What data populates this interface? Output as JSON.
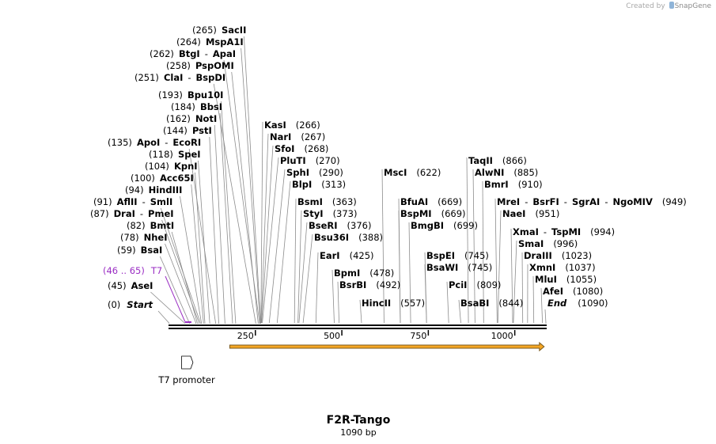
{
  "credit": {
    "prefix": "Created by",
    "brand": "SnapGene"
  },
  "sequence": {
    "name": "F2R-Tango",
    "length_label": "1090 bp",
    "length": 1090,
    "start_label": "Start",
    "start_pos": "(0)",
    "end_label": "End",
    "end_pos": "(1090)"
  },
  "colors": {
    "primer": "#9b2fc4",
    "orf_fill": "#f5a623",
    "orf_outline": "#7a5a1e",
    "backbone": "#000000"
  },
  "ruler": {
    "ticks": [
      250,
      500,
      750,
      1000
    ]
  },
  "primer": {
    "name": "T7",
    "range": "(46 .. 65)",
    "start": 46,
    "end": 65
  },
  "features": [
    {
      "name": "T7 promoter",
      "type": "promoter",
      "start": 46,
      "end": 65,
      "direction": "forward"
    },
    {
      "name": "",
      "type": "orf",
      "start": 176,
      "end": 1085,
      "direction": "forward"
    }
  ],
  "sites": [
    {
      "pos": 45,
      "names": [
        "AseI"
      ]
    },
    {
      "pos": 59,
      "names": [
        "BsaI"
      ]
    },
    {
      "pos": 78,
      "names": [
        "NheI"
      ]
    },
    {
      "pos": 82,
      "names": [
        "BmtI"
      ]
    },
    {
      "pos": 87,
      "names": [
        "DraI",
        "PmeI"
      ]
    },
    {
      "pos": 91,
      "names": [
        "AflII",
        "SmlI"
      ]
    },
    {
      "pos": 94,
      "names": [
        "HindIII"
      ]
    },
    {
      "pos": 100,
      "names": [
        "Acc65I"
      ]
    },
    {
      "pos": 104,
      "names": [
        "KpnI"
      ]
    },
    {
      "pos": 118,
      "names": [
        "SpeI"
      ]
    },
    {
      "pos": 135,
      "names": [
        "ApoI",
        "EcoRI"
      ]
    },
    {
      "pos": 144,
      "names": [
        "PstI"
      ]
    },
    {
      "pos": 162,
      "names": [
        "NotI"
      ]
    },
    {
      "pos": 184,
      "names": [
        "BbsI"
      ]
    },
    {
      "pos": 193,
      "names": [
        "Bpu10I"
      ]
    },
    {
      "pos": 251,
      "names": [
        "ClaI",
        "BspDI"
      ]
    },
    {
      "pos": 258,
      "names": [
        "PspOMI"
      ]
    },
    {
      "pos": 262,
      "names": [
        "BtgI",
        "ApaI"
      ]
    },
    {
      "pos": 264,
      "names": [
        "MspA1I"
      ]
    },
    {
      "pos": 265,
      "names": [
        "SacII"
      ]
    },
    {
      "pos": 266,
      "names": [
        "KasI"
      ]
    },
    {
      "pos": 267,
      "names": [
        "NarI"
      ]
    },
    {
      "pos": 268,
      "names": [
        "SfoI"
      ]
    },
    {
      "pos": 270,
      "names": [
        "PluTI"
      ]
    },
    {
      "pos": 290,
      "names": [
        "SphI"
      ]
    },
    {
      "pos": 313,
      "names": [
        "BlpI"
      ]
    },
    {
      "pos": 363,
      "names": [
        "BsmI"
      ]
    },
    {
      "pos": 373,
      "names": [
        "StyI"
      ]
    },
    {
      "pos": 376,
      "names": [
        "BseRI"
      ]
    },
    {
      "pos": 388,
      "names": [
        "Bsu36I"
      ]
    },
    {
      "pos": 425,
      "names": [
        "EarI"
      ]
    },
    {
      "pos": 478,
      "names": [
        "BpmI"
      ]
    },
    {
      "pos": 492,
      "names": [
        "BsrBI"
      ]
    },
    {
      "pos": 557,
      "names": [
        "HincII"
      ]
    },
    {
      "pos": 622,
      "names": [
        "MscI"
      ]
    },
    {
      "pos": 669,
      "names": [
        "BfuAI"
      ]
    },
    {
      "pos": 669,
      "names": [
        "BspMI"
      ]
    },
    {
      "pos": 699,
      "names": [
        "BmgBI"
      ]
    },
    {
      "pos": 745,
      "names": [
        "BspEI"
      ]
    },
    {
      "pos": 745,
      "names": [
        "BsaWI"
      ]
    },
    {
      "pos": 809,
      "names": [
        "PciI"
      ]
    },
    {
      "pos": 844,
      "names": [
        "BsaBI"
      ]
    },
    {
      "pos": 866,
      "names": [
        "TaqII"
      ]
    },
    {
      "pos": 885,
      "names": [
        "AlwNI"
      ]
    },
    {
      "pos": 910,
      "names": [
        "BmrI"
      ]
    },
    {
      "pos": 949,
      "names": [
        "MreI",
        "BsrFI",
        "SgrAI",
        "NgoMIV"
      ]
    },
    {
      "pos": 951,
      "names": [
        "NaeI"
      ]
    },
    {
      "pos": 994,
      "names": [
        "XmaI",
        "TspMI"
      ]
    },
    {
      "pos": 996,
      "names": [
        "SmaI"
      ]
    },
    {
      "pos": 1023,
      "names": [
        "DraIII"
      ]
    },
    {
      "pos": 1037,
      "names": [
        "XmnI"
      ]
    },
    {
      "pos": 1055,
      "names": [
        "MluI"
      ]
    },
    {
      "pos": 1080,
      "names": [
        "AfeI"
      ]
    }
  ]
}
